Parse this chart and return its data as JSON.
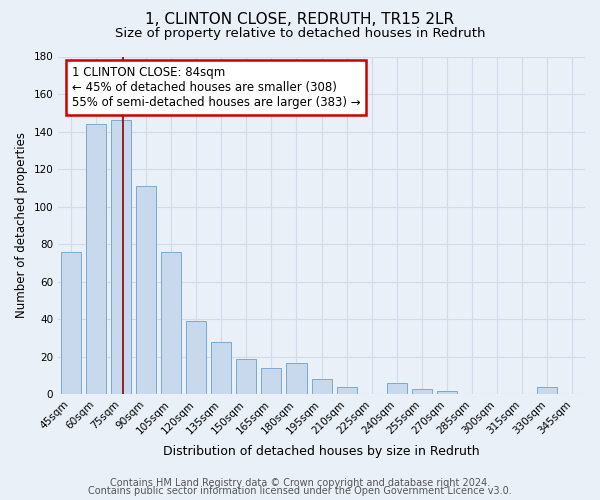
{
  "title": "1, CLINTON CLOSE, REDRUTH, TR15 2LR",
  "subtitle": "Size of property relative to detached houses in Redruth",
  "xlabel": "Distribution of detached houses by size in Redruth",
  "ylabel": "Number of detached properties",
  "bar_labels": [
    "45sqm",
    "60sqm",
    "75sqm",
    "90sqm",
    "105sqm",
    "120sqm",
    "135sqm",
    "150sqm",
    "165sqm",
    "180sqm",
    "195sqm",
    "210sqm",
    "225sqm",
    "240sqm",
    "255sqm",
    "270sqm",
    "285sqm",
    "300sqm",
    "315sqm",
    "330sqm",
    "345sqm"
  ],
  "bar_values": [
    76,
    144,
    146,
    111,
    76,
    39,
    28,
    19,
    14,
    17,
    8,
    4,
    0,
    6,
    3,
    2,
    0,
    0,
    0,
    4,
    0
  ],
  "bar_color": "#c8d9ed",
  "bar_edge_color": "#7aaace",
  "annotation_text": "1 CLINTON CLOSE: 84sqm\n← 45% of detached houses are smaller (308)\n55% of semi-detached houses are larger (383) →",
  "annotation_box_color": "#ffffff",
  "annotation_box_edge_color": "#cc0000",
  "ylim": [
    0,
    180
  ],
  "yticks": [
    0,
    20,
    40,
    60,
    80,
    100,
    120,
    140,
    160,
    180
  ],
  "footer1": "Contains HM Land Registry data © Crown copyright and database right 2024.",
  "footer2": "Contains public sector information licensed under the Open Government Licence v3.0.",
  "bg_color": "#eaf0f8",
  "plot_bg_color": "#eaf0f8",
  "grid_color": "#d0dce8",
  "title_fontsize": 11,
  "subtitle_fontsize": 9.5,
  "xlabel_fontsize": 9,
  "ylabel_fontsize": 8.5,
  "tick_fontsize": 7.5,
  "annotation_fontsize": 8.5,
  "footer_fontsize": 7,
  "redline_color": "#8b0000"
}
